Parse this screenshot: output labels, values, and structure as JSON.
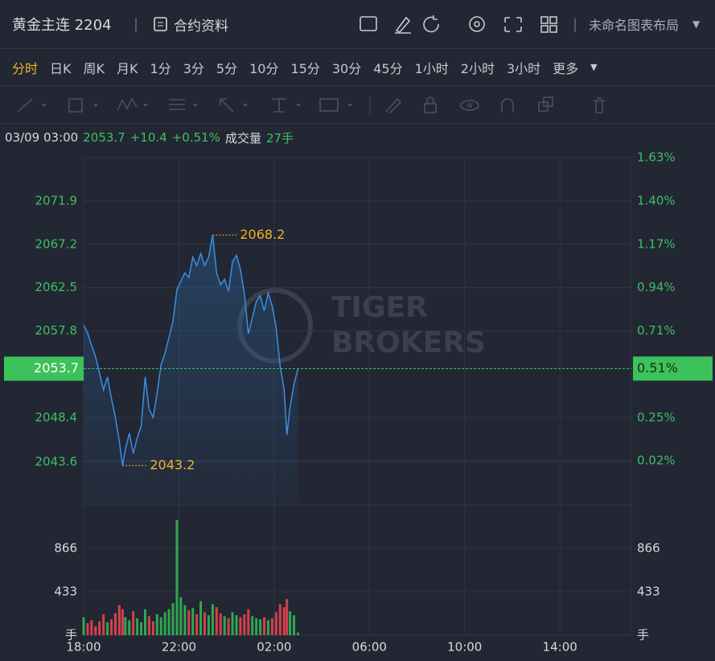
{
  "header": {
    "title": "黄金主连 2204",
    "contract_info": "合约资料",
    "layout_name": "未命名图表布局"
  },
  "tabs": [
    "分时",
    "日K",
    "周K",
    "月K",
    "1分",
    "3分",
    "5分",
    "10分",
    "15分",
    "30分",
    "45分",
    "1小时",
    "2小时",
    "3小时",
    "更多"
  ],
  "active_tab": 0,
  "info": {
    "datetime": "03/09 03:00",
    "price": "2053.7",
    "change": "+10.4",
    "change_pct": "+0.51%",
    "volume_label": "成交量",
    "volume": "27手"
  },
  "chart_data": {
    "type": "line",
    "color": "#3a8ee6",
    "grid": true,
    "x": [
      "18:00",
      "18:10",
      "18:20",
      "18:30",
      "18:40",
      "18:50",
      "19:00",
      "19:10",
      "19:20",
      "19:30",
      "19:38",
      "19:45",
      "19:55",
      "20:05",
      "20:15",
      "20:25",
      "20:35",
      "20:45",
      "20:55",
      "21:05",
      "21:15",
      "21:25",
      "21:35",
      "21:45",
      "21:55",
      "22:05",
      "22:15",
      "22:25",
      "22:35",
      "22:45",
      "22:55",
      "23:05",
      "23:15",
      "23:25",
      "23:35",
      "23:45",
      "23:55",
      "00:05",
      "00:15",
      "00:25",
      "00:35",
      "00:45",
      "00:55",
      "01:05",
      "01:15",
      "01:25",
      "01:35",
      "01:45",
      "01:55",
      "02:05",
      "02:15",
      "02:25",
      "02:32",
      "02:40",
      "02:50",
      "03:00"
    ],
    "values": [
      2058.4,
      2057.6,
      2056.2,
      2055.0,
      2053.2,
      2051.4,
      2052.8,
      2050.5,
      2048.4,
      2045.8,
      2043.2,
      2044.9,
      2046.7,
      2044.5,
      2046.2,
      2047.5,
      2052.8,
      2049.3,
      2048.4,
      2051.0,
      2054.1,
      2055.4,
      2057.1,
      2058.8,
      2062.3,
      2063.2,
      2064.1,
      2063.6,
      2065.8,
      2064.9,
      2066.2,
      2064.9,
      2065.8,
      2068.2,
      2064.1,
      2062.8,
      2063.4,
      2062.1,
      2065.3,
      2066.0,
      2064.5,
      2061.8,
      2057.5,
      2059.2,
      2061.0,
      2061.6,
      2060.0,
      2061.9,
      2060.5,
      2058.2,
      2054.0,
      2051.5,
      2046.5,
      2049.5,
      2052.0,
      2053.7
    ],
    "xlim": [
      "18:00",
      "17:00"
    ],
    "xticks": [
      "18:00",
      "22:00",
      "02:00",
      "06:00",
      "10:00",
      "14:00"
    ],
    "ylim": [
      2039,
      2076.6
    ],
    "yticks": [
      2071.9,
      2067.2,
      2062.5,
      2057.8,
      2048.4,
      2043.6
    ],
    "y2lim": [
      -0.21,
      1.63
    ],
    "y2ticks": [
      {
        "value": 1.63,
        "label": "1.63%"
      },
      {
        "value": 1.4,
        "label": "1.40%"
      },
      {
        "value": 1.17,
        "label": "1.17%"
      },
      {
        "value": 0.94,
        "label": "0.94%"
      },
      {
        "value": 0.71,
        "label": "0.71%"
      },
      {
        "value": 0.25,
        "label": "0.25%"
      },
      {
        "value": 0.02,
        "label": "0.02%"
      }
    ],
    "last_price": 2053.7,
    "last_pct": {
      "value": 0.51,
      "label": "0.51%"
    },
    "max": {
      "x": "23:25",
      "value": 2068.2
    },
    "min": {
      "x": "19:38",
      "value": 2043.2
    },
    "watermark": [
      "TIGER",
      "BROKERS"
    ],
    "volume": {
      "values": [
        180,
        120,
        150,
        90,
        140,
        210,
        130,
        160,
        220,
        300,
        260,
        180,
        150,
        240,
        170,
        130,
        260,
        190,
        140,
        210,
        180,
        230,
        260,
        320,
        1150,
        380,
        300,
        250,
        270,
        210,
        340,
        230,
        200,
        310,
        280,
        220,
        190,
        170,
        230,
        200,
        180,
        210,
        260,
        190,
        170,
        160,
        180,
        150,
        170,
        230,
        310,
        280,
        360,
        240,
        200,
        27
      ],
      "ylim": [
        0,
        1300
      ],
      "yticks": [
        433,
        866
      ],
      "unit": "手",
      "up_color": "#2fa84f",
      "down_color": "#d6404a"
    }
  }
}
